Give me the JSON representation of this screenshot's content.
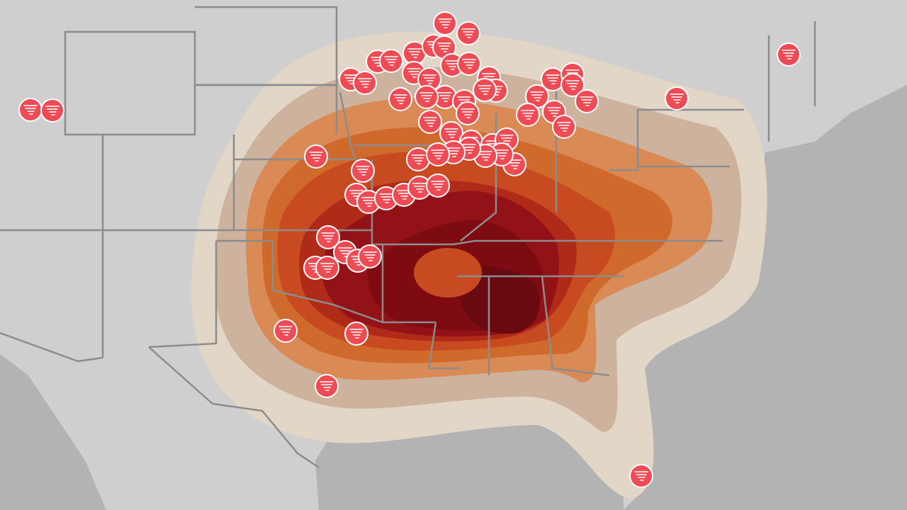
{
  "map": {
    "layer": "tornado-report-density",
    "marker_icon": "tornado-icon",
    "colors": {
      "land": "#cfcfcf",
      "water": "#b3b3b3",
      "borders": "#8c8c8c",
      "marker": "#ef4b55",
      "density_levels": [
        "#e2d6c6",
        "#cdb39e",
        "#d98a55",
        "#cf6a2c",
        "#c84a20",
        "#b02a18",
        "#931217",
        "#7e0b12",
        "#680a10"
      ]
    }
  }
}
